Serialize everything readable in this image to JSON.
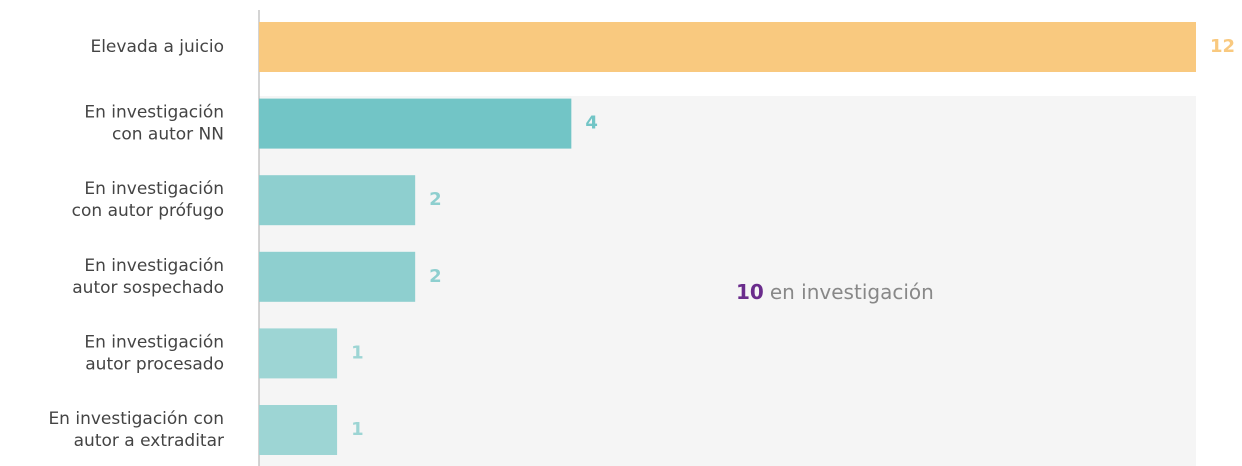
{
  "chart_data": {
    "type": "bar",
    "orientation": "horizontal",
    "categories": [
      "Elevada a juicio",
      "En investigación\ncon autor NN",
      "En investigación\ncon autor prófugo",
      "En investigación\nautor sospechado",
      "En investigación\nautor procesado",
      "En investigación con\nautor a extraditar"
    ],
    "values": [
      12,
      4,
      2,
      2,
      1,
      1
    ],
    "colors": [
      "#f9c97f",
      "#72c5c6",
      "#8ecfcf",
      "#8ecfcf",
      "#9dd5d4",
      "#9dd5d4"
    ],
    "xlim": [
      0,
      12
    ],
    "annotation": {
      "count": 10,
      "label": "en investigación",
      "count_color": "#6a2c8c"
    }
  }
}
